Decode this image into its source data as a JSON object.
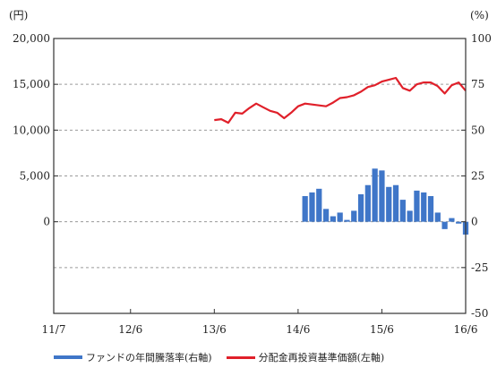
{
  "chart_data": {
    "type": "bar+line",
    "title": "",
    "xlabel": "",
    "left_axis": {
      "unit": "(円)",
      "ylim": [
        -10000,
        20000
      ],
      "ticks": [
        0,
        5000,
        10000,
        15000,
        20000
      ],
      "tick_labels": [
        "0",
        "5,000",
        "10,000",
        "15,000",
        "20,000"
      ]
    },
    "right_axis": {
      "unit": "(%)",
      "ylim": [
        -50,
        100
      ],
      "ticks": [
        -50,
        -25,
        0,
        25,
        50,
        75,
        100
      ],
      "tick_labels": [
        "-50",
        "-25",
        "0",
        "25",
        "50",
        "75",
        "100"
      ]
    },
    "x_axis": {
      "range": [
        "2011-07",
        "2016-06"
      ],
      "ticks": [
        "2011-07",
        "2012-06",
        "2013-06",
        "2014-06",
        "2015-06",
        "2016-06"
      ],
      "tick_labels": [
        "11/7",
        "12/6",
        "13/6",
        "14/6",
        "15/6",
        "16/6"
      ]
    },
    "grid": {
      "horizontal": "dashed"
    },
    "legend_position": "bottom",
    "series": [
      {
        "name": "ファンドの年間騰落率(右軸)",
        "type": "bar",
        "axis": "right",
        "color": "#3f76c8",
        "x": [
          "2014-07",
          "2014-08",
          "2014-09",
          "2014-10",
          "2014-11",
          "2014-12",
          "2015-01",
          "2015-02",
          "2015-03",
          "2015-04",
          "2015-05",
          "2015-06",
          "2015-07",
          "2015-08",
          "2015-09",
          "2015-10",
          "2015-11",
          "2015-12",
          "2016-01",
          "2016-02",
          "2016-03",
          "2016-04",
          "2016-05",
          "2016-06"
        ],
        "y": [
          14,
          16,
          18,
          7,
          3,
          5,
          1,
          6,
          15,
          20,
          29,
          28,
          19,
          20,
          12,
          6,
          17,
          16,
          14,
          5,
          -4,
          2,
          -1,
          -7
        ]
      },
      {
        "name": "分配金再投資基準価額(左軸)",
        "type": "line",
        "axis": "left",
        "color": "#e0202a",
        "x": [
          "2013-06",
          "2013-07",
          "2013-08",
          "2013-09",
          "2013-10",
          "2013-11",
          "2013-12",
          "2014-01",
          "2014-02",
          "2014-03",
          "2014-04",
          "2014-05",
          "2014-06",
          "2014-07",
          "2014-08",
          "2014-09",
          "2014-10",
          "2014-11",
          "2014-12",
          "2015-01",
          "2015-02",
          "2015-03",
          "2015-04",
          "2015-05",
          "2015-06",
          "2015-07",
          "2015-08",
          "2015-09",
          "2015-10",
          "2015-11",
          "2015-12",
          "2016-01",
          "2016-02",
          "2016-03",
          "2016-04",
          "2016-05",
          "2016-06"
        ],
        "y": [
          11100,
          11200,
          10800,
          11900,
          11800,
          12400,
          12900,
          12500,
          12100,
          11900,
          11300,
          11900,
          12600,
          12900,
          12800,
          12700,
          12600,
          13000,
          13500,
          13600,
          13800,
          14200,
          14700,
          14900,
          15300,
          15500,
          15700,
          14600,
          14300,
          15000,
          15200,
          15200,
          14800,
          14000,
          14900,
          15200,
          14300
        ]
      }
    ]
  }
}
